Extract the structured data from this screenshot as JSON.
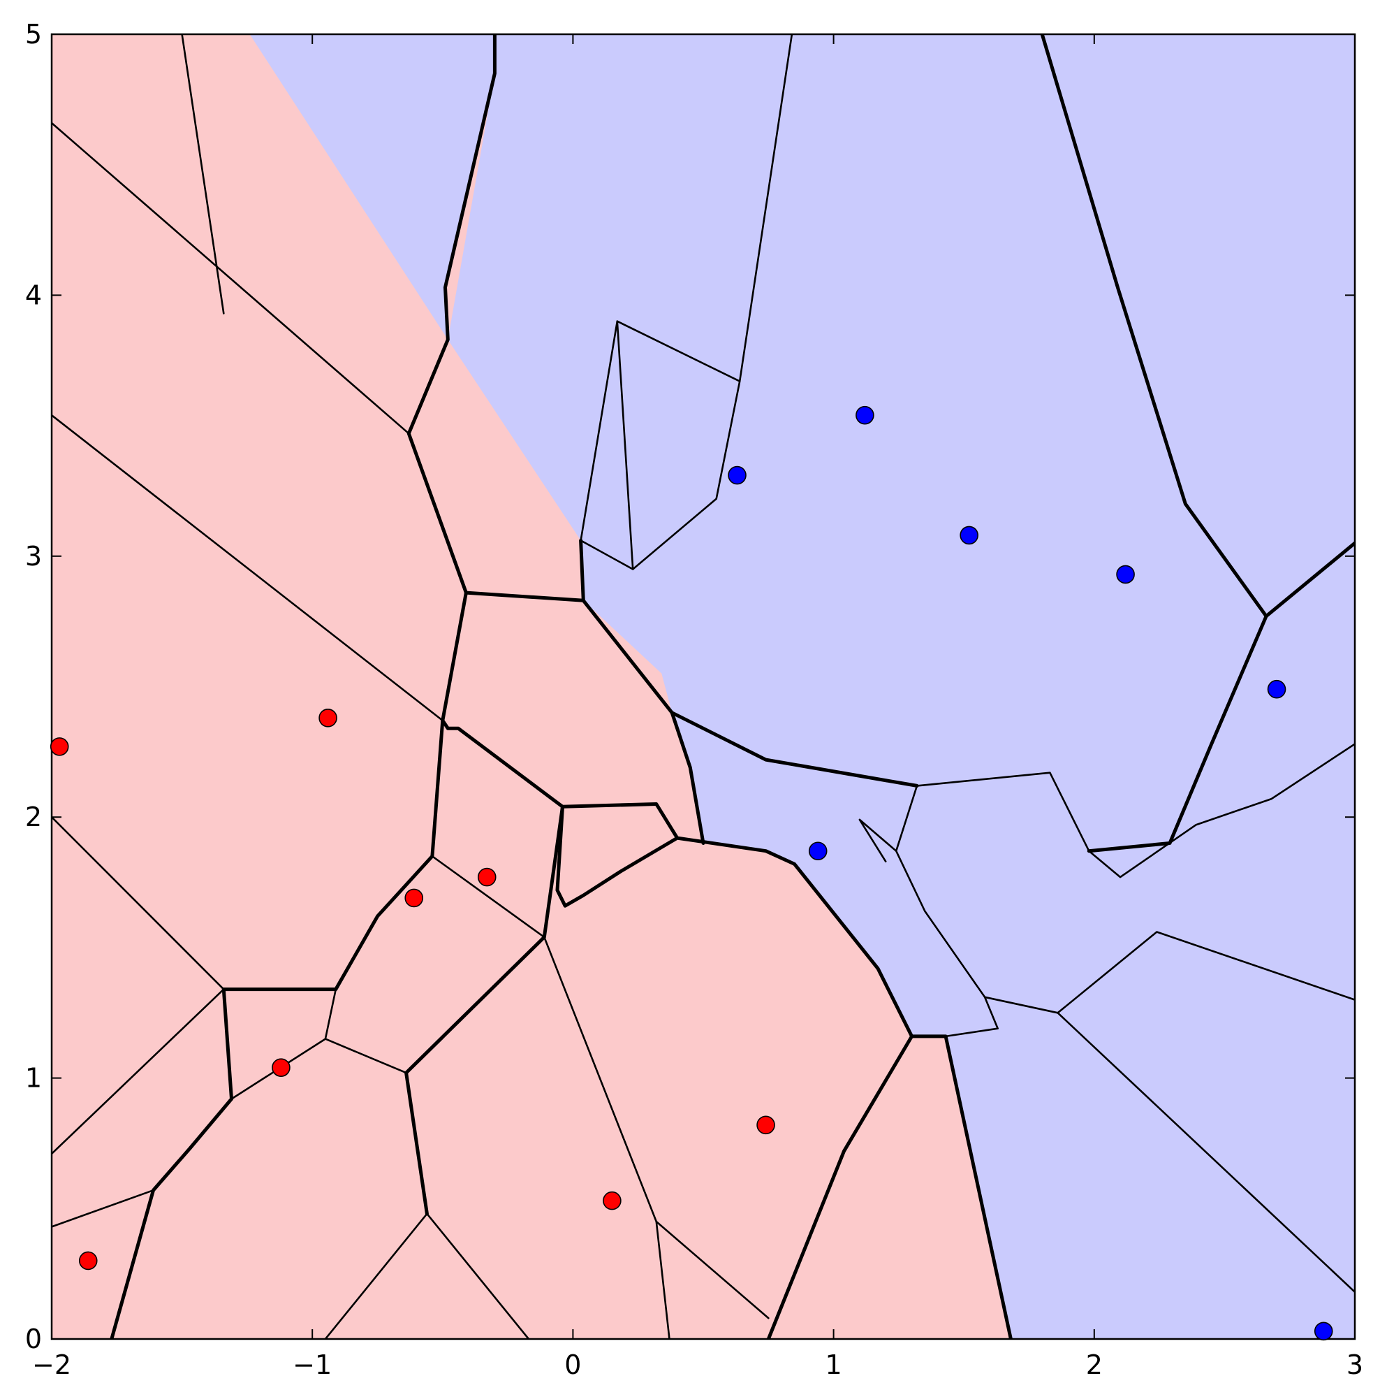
{
  "chart_data": {
    "type": "scatter",
    "title": "",
    "xlabel": "",
    "ylabel": "",
    "xlim": [
      -2,
      3
    ],
    "ylim": [
      0,
      5
    ],
    "x_ticks": [
      {
        "value": -2,
        "label": "−2"
      },
      {
        "value": -1,
        "label": "−1"
      },
      {
        "value": 0,
        "label": "0"
      },
      {
        "value": 1,
        "label": "1"
      },
      {
        "value": 2,
        "label": "2"
      },
      {
        "value": 3,
        "label": "3"
      }
    ],
    "y_ticks": [
      {
        "value": 0,
        "label": "0"
      },
      {
        "value": 1,
        "label": "1"
      },
      {
        "value": 2,
        "label": "2"
      },
      {
        "value": 3,
        "label": "3"
      },
      {
        "value": 4,
        "label": "4"
      },
      {
        "value": 5,
        "label": "5"
      }
    ],
    "grid": false,
    "legend": "none",
    "colors": {
      "red_points": "#ff0000",
      "blue_points": "#0000ff",
      "red_region": "#fccacb",
      "blue_region": "#cacbfd",
      "boundaries": "#000000"
    },
    "series": [
      {
        "color": "#ff0000",
        "points": [
          [
            -1.97,
            2.27
          ],
          [
            -0.94,
            2.38
          ],
          [
            -0.33,
            1.77
          ],
          [
            -0.61,
            1.69
          ],
          [
            -1.12,
            1.04
          ],
          [
            -1.86,
            0.3
          ],
          [
            0.15,
            0.53
          ],
          [
            0.74,
            0.82
          ]
        ]
      },
      {
        "color": "#0000ff",
        "points": [
          [
            0.63,
            3.31
          ],
          [
            1.12,
            3.54
          ],
          [
            1.52,
            3.08
          ],
          [
            2.12,
            2.93
          ],
          [
            2.7,
            2.49
          ],
          [
            0.94,
            1.87
          ],
          [
            2.88,
            0.03
          ]
        ]
      }
    ],
    "regions": {
      "blue": [
        [
          [
            -1.24,
            5
          ],
          [
            -0.3,
            5
          ],
          [
            -0.3,
            4.85
          ],
          [
            -0.49,
            4.03
          ],
          [
            -0.48,
            3.83
          ],
          [
            -1.24,
            5
          ]
        ],
        [
          [
            -0.3,
            5
          ],
          [
            3,
            5
          ],
          [
            3,
            0
          ],
          [
            1.68,
            0
          ],
          [
            1.43,
            1.16
          ],
          [
            1.3,
            1.16
          ],
          [
            1.17,
            1.42
          ],
          [
            0.85,
            1.82
          ],
          [
            0.74,
            1.87
          ],
          [
            0.5,
            1.9
          ],
          [
            0.45,
            2.19
          ],
          [
            0.38,
            2.4
          ],
          [
            0.34,
            2.55
          ],
          [
            0.04,
            2.83
          ],
          [
            0.03,
            3.06
          ],
          [
            -0.48,
            3.83
          ],
          [
            -0.3,
            4.85
          ],
          [
            -0.3,
            5
          ]
        ]
      ]
    },
    "boundaries": {
      "class": [
        [
          [
            -0.3,
            5
          ],
          [
            -0.3,
            4.85
          ],
          [
            -0.49,
            4.03
          ],
          [
            -0.48,
            3.83
          ],
          [
            -0.63,
            3.47
          ],
          [
            -0.41,
            2.86
          ]
        ],
        [
          [
            -0.41,
            2.86
          ],
          [
            0.04,
            2.83
          ],
          [
            0.03,
            3.06
          ]
        ],
        [
          [
            -0.41,
            2.86
          ],
          [
            -0.5,
            2.37
          ],
          [
            -0.48,
            2.34
          ],
          [
            -0.44,
            2.34
          ],
          [
            -0.04,
            2.04
          ],
          [
            0.32,
            2.05
          ],
          [
            0.4,
            1.92
          ]
        ],
        [
          [
            -0.5,
            2.37
          ],
          [
            -0.54,
            1.85
          ],
          [
            -0.75,
            1.62
          ],
          [
            -0.91,
            1.34
          ],
          [
            -1.34,
            1.34
          ],
          [
            -1.31,
            0.92
          ],
          [
            -1.47,
            0.73
          ],
          [
            -1.61,
            0.57
          ],
          [
            -1.77,
            0
          ]
        ],
        [
          [
            -0.04,
            2.04
          ],
          [
            -0.06,
            1.72
          ],
          [
            -0.03,
            1.66
          ],
          [
            0.04,
            1.7
          ],
          [
            0.18,
            1.79
          ],
          [
            0.4,
            1.92
          ],
          [
            0.74,
            1.87
          ],
          [
            0.85,
            1.82
          ],
          [
            1.17,
            1.42
          ],
          [
            1.3,
            1.16
          ],
          [
            1.43,
            1.16
          ],
          [
            1.68,
            0
          ]
        ],
        [
          [
            -0.04,
            2.04
          ],
          [
            -0.11,
            1.54
          ],
          [
            -0.64,
            1.02
          ]
        ],
        [
          [
            1.3,
            1.16
          ],
          [
            1.04,
            0.72
          ],
          [
            0.75,
            0
          ]
        ],
        [
          [
            0.38,
            2.4
          ],
          [
            0.45,
            2.19
          ],
          [
            0.5,
            1.9
          ]
        ],
        [
          [
            0.04,
            2.83
          ],
          [
            0.38,
            2.4
          ],
          [
            0.74,
            2.22
          ],
          [
            1.32,
            2.12
          ]
        ],
        [
          [
            1.8,
            5
          ],
          [
            2.09,
            4.03
          ],
          [
            2.35,
            3.2
          ],
          [
            2.66,
            2.77
          ],
          [
            3,
            3.05
          ]
        ],
        [
          [
            2.66,
            2.77
          ],
          [
            2.45,
            2.28
          ],
          [
            2.29,
            1.9
          ],
          [
            1.98,
            1.87
          ]
        ],
        [
          [
            -0.64,
            1.02
          ],
          [
            -0.56,
            0.48
          ]
        ]
      ],
      "thin": [
        [
          [
            -2,
            4.66
          ],
          [
            -0.63,
            3.47
          ]
        ],
        [
          [
            -2,
            3.54
          ],
          [
            -0.5,
            2.37
          ]
        ],
        [
          [
            -2,
            2.0
          ],
          [
            -1.79,
            1.79
          ],
          [
            -1.34,
            1.34
          ]
        ],
        [
          [
            -1.34,
            1.34
          ],
          [
            -2,
            0.71
          ]
        ],
        [
          [
            -1.5,
            5
          ],
          [
            -1.34,
            3.93
          ]
        ],
        [
          [
            -0.91,
            1.34
          ],
          [
            -0.95,
            1.15
          ],
          [
            -0.64,
            1.02
          ]
        ],
        [
          [
            -0.95,
            1.15
          ],
          [
            -1.31,
            0.92
          ]
        ],
        [
          [
            -2,
            0.43
          ],
          [
            -1.61,
            0.57
          ]
        ],
        [
          [
            -0.56,
            0.48
          ],
          [
            -0.17,
            0
          ]
        ],
        [
          [
            -0.56,
            0.48
          ],
          [
            -0.95,
            0
          ]
        ],
        [
          [
            -0.11,
            1.54
          ],
          [
            0.32,
            0.45
          ],
          [
            0.37,
            0
          ]
        ],
        [
          [
            0.32,
            0.45
          ],
          [
            0.75,
            0.08
          ]
        ],
        [
          [
            -0.54,
            1.85
          ],
          [
            -0.11,
            1.54
          ]
        ],
        [
          [
            0.03,
            3.06
          ],
          [
            0.23,
            2.95
          ],
          [
            0.55,
            3.22
          ],
          [
            0.64,
            3.67
          ],
          [
            0.84,
            5
          ]
        ],
        [
          [
            0.23,
            2.95
          ],
          [
            0.17,
            3.9
          ]
        ],
        [
          [
            0.03,
            3.06
          ],
          [
            0.17,
            3.9
          ],
          [
            0.64,
            3.67
          ]
        ],
        [
          [
            1.32,
            2.12
          ],
          [
            1.24,
            1.87
          ],
          [
            1.35,
            1.64
          ],
          [
            1.58,
            1.31
          ],
          [
            1.86,
            1.25
          ],
          [
            3,
            0.18
          ]
        ],
        [
          [
            1.24,
            1.87
          ],
          [
            1.1,
            1.99
          ],
          [
            1.2,
            1.83
          ]
        ],
        [
          [
            1.86,
            1.25
          ],
          [
            2.24,
            1.56
          ],
          [
            3,
            1.3
          ]
        ],
        [
          [
            1.58,
            1.31
          ],
          [
            1.63,
            1.19
          ],
          [
            1.43,
            1.16
          ]
        ],
        [
          [
            1.32,
            2.12
          ],
          [
            1.83,
            2.17
          ],
          [
            1.98,
            1.87
          ],
          [
            2.1,
            1.77
          ],
          [
            2.39,
            1.97
          ],
          [
            2.68,
            2.07
          ],
          [
            3,
            2.28
          ]
        ]
      ]
    }
  }
}
